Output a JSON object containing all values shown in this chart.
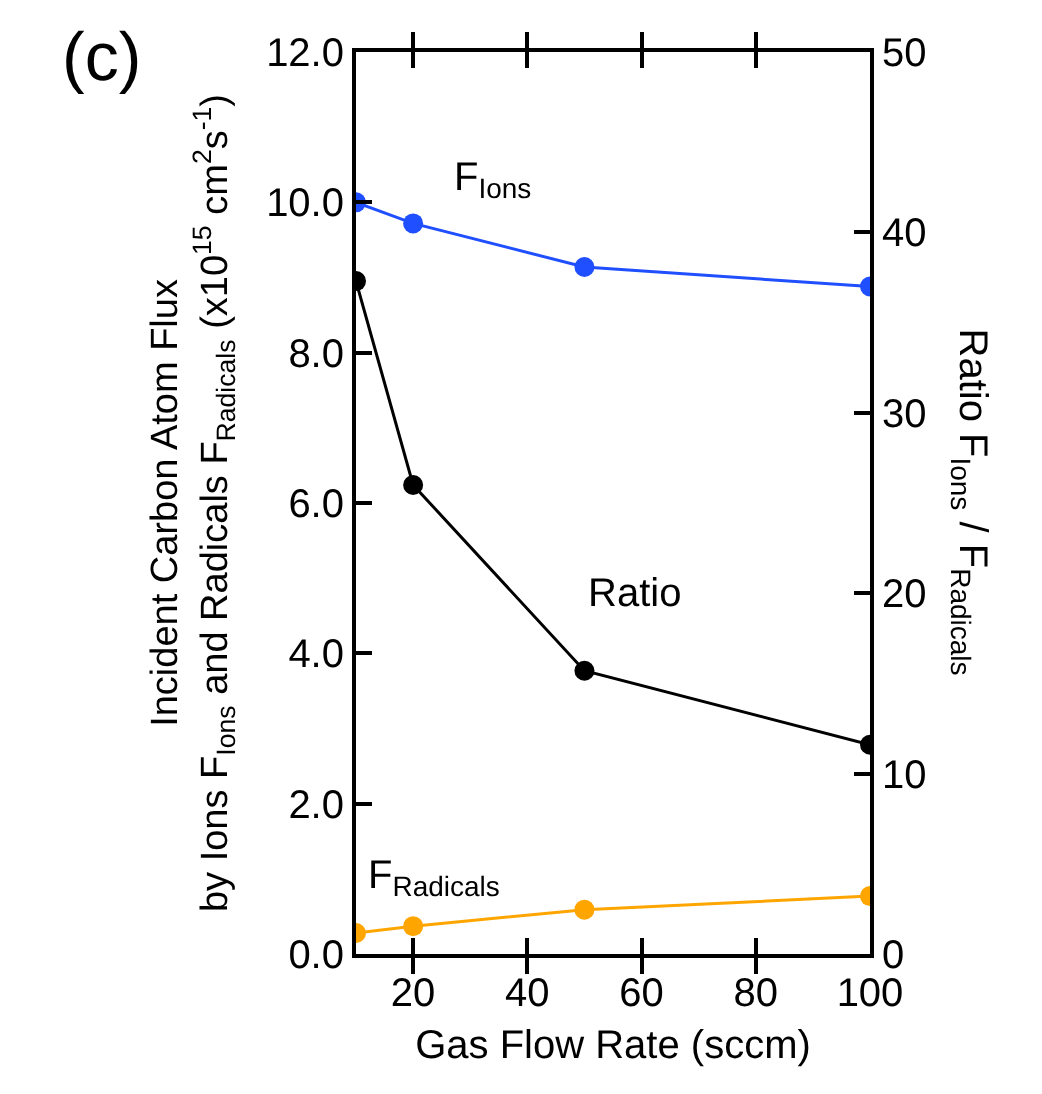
{
  "chart_data": {
    "type": "line",
    "xlabel": "Gas Flow Rate (sccm)",
    "ylabel": "Incident Carbon Atom Flux\nby Ions F$_{Ions}$ and Radicals F$_{Radicals}$ (x10$^{15}$ cm$^{2}$s$^{-1}$)",
    "y2label": "Ratio F$_{Ions}$ / F$_{Radicals}$",
    "annotations": [
      "(c)"
    ],
    "x": [
      10,
      20,
      50,
      100
    ],
    "series": [
      {
        "name": "F$_{Ions}$",
        "color": "#1f4fff",
        "values": [
          10.0,
          9.72,
          9.14,
          8.88
        ]
      },
      {
        "name": "Ratio",
        "color": "#000000",
        "values": [
          37.3,
          26.0,
          15.7,
          11.6
        ],
        "axis": "y2"
      },
      {
        "name": "F$_{Radicals}$",
        "color": "#ffa500",
        "values": [
          0.28,
          0.37,
          0.59,
          0.77
        ]
      }
    ],
    "xlim": [
      10,
      100
    ],
    "xticks": [
      20,
      40,
      60,
      80,
      100
    ],
    "ylim": [
      0,
      12
    ],
    "yticks": [
      {
        "value": 0,
        "label": "0.0"
      },
      {
        "value": 2,
        "label": "2.0"
      },
      {
        "value": 4,
        "label": "4.0"
      },
      {
        "value": 6,
        "label": "6.0"
      },
      {
        "value": 8,
        "label": "8.0"
      },
      {
        "value": 10,
        "label": "10.0"
      },
      {
        "value": 12,
        "label": "12.0"
      }
    ],
    "y2lim": [
      0,
      50
    ],
    "y2ticks": [
      0,
      10,
      20,
      30,
      40,
      50
    ],
    "legend": false,
    "marker": "circle",
    "line_style": "solid"
  }
}
